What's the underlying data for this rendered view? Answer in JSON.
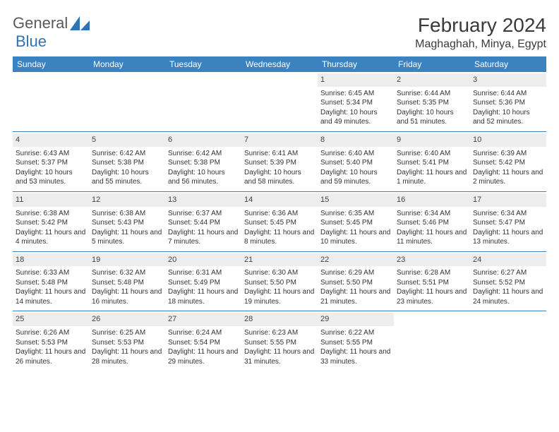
{
  "logo": {
    "textA": "General",
    "textB": "Blue",
    "colorA": "#7a7a7a",
    "colorB": "#2d73b6",
    "shape_color": "#2d73b6"
  },
  "header": {
    "title": "February 2024",
    "location": "Maghaghah, Minya, Egypt"
  },
  "colors": {
    "header_bg": "#3b83c0",
    "header_text": "#ffffff",
    "daynum_bg": "#ededed",
    "week_border": "#3b83c0"
  },
  "day_names": [
    "Sunday",
    "Monday",
    "Tuesday",
    "Wednesday",
    "Thursday",
    "Friday",
    "Saturday"
  ],
  "weeks": [
    [
      {
        "n": "",
        "lines": []
      },
      {
        "n": "",
        "lines": []
      },
      {
        "n": "",
        "lines": []
      },
      {
        "n": "",
        "lines": []
      },
      {
        "n": "1",
        "lines": [
          "Sunrise: 6:45 AM",
          "Sunset: 5:34 PM",
          "Daylight: 10 hours and 49 minutes."
        ]
      },
      {
        "n": "2",
        "lines": [
          "Sunrise: 6:44 AM",
          "Sunset: 5:35 PM",
          "Daylight: 10 hours and 51 minutes."
        ]
      },
      {
        "n": "3",
        "lines": [
          "Sunrise: 6:44 AM",
          "Sunset: 5:36 PM",
          "Daylight: 10 hours and 52 minutes."
        ]
      }
    ],
    [
      {
        "n": "4",
        "lines": [
          "Sunrise: 6:43 AM",
          "Sunset: 5:37 PM",
          "Daylight: 10 hours and 53 minutes."
        ]
      },
      {
        "n": "5",
        "lines": [
          "Sunrise: 6:42 AM",
          "Sunset: 5:38 PM",
          "Daylight: 10 hours and 55 minutes."
        ]
      },
      {
        "n": "6",
        "lines": [
          "Sunrise: 6:42 AM",
          "Sunset: 5:38 PM",
          "Daylight: 10 hours and 56 minutes."
        ]
      },
      {
        "n": "7",
        "lines": [
          "Sunrise: 6:41 AM",
          "Sunset: 5:39 PM",
          "Daylight: 10 hours and 58 minutes."
        ]
      },
      {
        "n": "8",
        "lines": [
          "Sunrise: 6:40 AM",
          "Sunset: 5:40 PM",
          "Daylight: 10 hours and 59 minutes."
        ]
      },
      {
        "n": "9",
        "lines": [
          "Sunrise: 6:40 AM",
          "Sunset: 5:41 PM",
          "Daylight: 11 hours and 1 minute."
        ]
      },
      {
        "n": "10",
        "lines": [
          "Sunrise: 6:39 AM",
          "Sunset: 5:42 PM",
          "Daylight: 11 hours and 2 minutes."
        ]
      }
    ],
    [
      {
        "n": "11",
        "lines": [
          "Sunrise: 6:38 AM",
          "Sunset: 5:42 PM",
          "Daylight: 11 hours and 4 minutes."
        ]
      },
      {
        "n": "12",
        "lines": [
          "Sunrise: 6:38 AM",
          "Sunset: 5:43 PM",
          "Daylight: 11 hours and 5 minutes."
        ]
      },
      {
        "n": "13",
        "lines": [
          "Sunrise: 6:37 AM",
          "Sunset: 5:44 PM",
          "Daylight: 11 hours and 7 minutes."
        ]
      },
      {
        "n": "14",
        "lines": [
          "Sunrise: 6:36 AM",
          "Sunset: 5:45 PM",
          "Daylight: 11 hours and 8 minutes."
        ]
      },
      {
        "n": "15",
        "lines": [
          "Sunrise: 6:35 AM",
          "Sunset: 5:45 PM",
          "Daylight: 11 hours and 10 minutes."
        ]
      },
      {
        "n": "16",
        "lines": [
          "Sunrise: 6:34 AM",
          "Sunset: 5:46 PM",
          "Daylight: 11 hours and 11 minutes."
        ]
      },
      {
        "n": "17",
        "lines": [
          "Sunrise: 6:34 AM",
          "Sunset: 5:47 PM",
          "Daylight: 11 hours and 13 minutes."
        ]
      }
    ],
    [
      {
        "n": "18",
        "lines": [
          "Sunrise: 6:33 AM",
          "Sunset: 5:48 PM",
          "Daylight: 11 hours and 14 minutes."
        ]
      },
      {
        "n": "19",
        "lines": [
          "Sunrise: 6:32 AM",
          "Sunset: 5:48 PM",
          "Daylight: 11 hours and 16 minutes."
        ]
      },
      {
        "n": "20",
        "lines": [
          "Sunrise: 6:31 AM",
          "Sunset: 5:49 PM",
          "Daylight: 11 hours and 18 minutes."
        ]
      },
      {
        "n": "21",
        "lines": [
          "Sunrise: 6:30 AM",
          "Sunset: 5:50 PM",
          "Daylight: 11 hours and 19 minutes."
        ]
      },
      {
        "n": "22",
        "lines": [
          "Sunrise: 6:29 AM",
          "Sunset: 5:50 PM",
          "Daylight: 11 hours and 21 minutes."
        ]
      },
      {
        "n": "23",
        "lines": [
          "Sunrise: 6:28 AM",
          "Sunset: 5:51 PM",
          "Daylight: 11 hours and 23 minutes."
        ]
      },
      {
        "n": "24",
        "lines": [
          "Sunrise: 6:27 AM",
          "Sunset: 5:52 PM",
          "Daylight: 11 hours and 24 minutes."
        ]
      }
    ],
    [
      {
        "n": "25",
        "lines": [
          "Sunrise: 6:26 AM",
          "Sunset: 5:53 PM",
          "Daylight: 11 hours and 26 minutes."
        ]
      },
      {
        "n": "26",
        "lines": [
          "Sunrise: 6:25 AM",
          "Sunset: 5:53 PM",
          "Daylight: 11 hours and 28 minutes."
        ]
      },
      {
        "n": "27",
        "lines": [
          "Sunrise: 6:24 AM",
          "Sunset: 5:54 PM",
          "Daylight: 11 hours and 29 minutes."
        ]
      },
      {
        "n": "28",
        "lines": [
          "Sunrise: 6:23 AM",
          "Sunset: 5:55 PM",
          "Daylight: 11 hours and 31 minutes."
        ]
      },
      {
        "n": "29",
        "lines": [
          "Sunrise: 6:22 AM",
          "Sunset: 5:55 PM",
          "Daylight: 11 hours and 33 minutes."
        ]
      },
      {
        "n": "",
        "lines": []
      },
      {
        "n": "",
        "lines": []
      }
    ]
  ]
}
